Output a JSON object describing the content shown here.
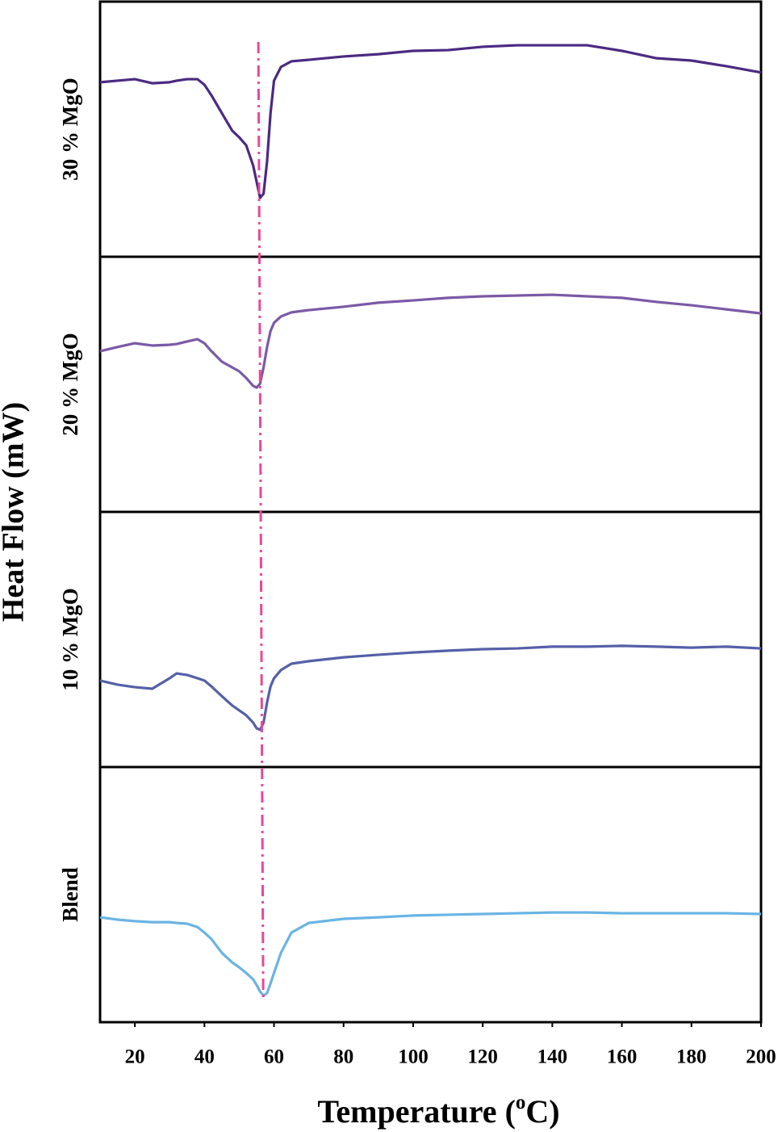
{
  "ylabel": "Heat Flow (mW)",
  "reference_line": {
    "x": [
      55.5,
      56.9
    ],
    "color": "#e8489a"
  },
  "chart_data": [
    {
      "type": "line",
      "ylabel": "30 % MgO",
      "xlim": [
        10,
        200
      ],
      "ylim": [
        0,
        100
      ],
      "x": [
        10,
        15,
        20,
        25,
        30,
        32,
        35,
        38,
        40,
        42,
        45,
        48,
        50,
        52,
        54,
        55,
        56,
        57,
        58,
        59,
        60,
        62,
        65,
        70,
        80,
        90,
        100,
        110,
        120,
        130,
        140,
        150,
        160,
        170,
        180,
        190,
        200
      ],
      "series": [
        {
          "color": "#4b2a82",
          "values": [
            68.4,
            69.0,
            69.6,
            68.0,
            68.4,
            69.0,
            69.6,
            69.6,
            67.4,
            63.3,
            56.3,
            49.4,
            46.8,
            43.7,
            35.8,
            29.4,
            23.1,
            24.7,
            37.3,
            56.3,
            69.0,
            74.4,
            76.6,
            77.2,
            78.5,
            79.4,
            80.7,
            81.0,
            82.3,
            82.9,
            82.9,
            82.9,
            80.7,
            77.8,
            76.9,
            74.7,
            72.2
          ]
        }
      ]
    },
    {
      "type": "line",
      "ylabel": "20 % MgO",
      "xlim": [
        10,
        200
      ],
      "ylim": [
        0,
        100
      ],
      "x": [
        10,
        15,
        20,
        25,
        30,
        32,
        35,
        38,
        40,
        42,
        45,
        48,
        50,
        52,
        54,
        55,
        56,
        57,
        58,
        59,
        60,
        62,
        65,
        70,
        80,
        90,
        100,
        110,
        120,
        130,
        140,
        150,
        160,
        170,
        180,
        190,
        200
      ],
      "series": [
        {
          "color": "#7b5aa6",
          "values": [
            63.0,
            64.6,
            66.1,
            65.2,
            65.5,
            65.8,
            66.8,
            67.7,
            66.1,
            63.0,
            58.9,
            56.6,
            55.1,
            52.5,
            49.4,
            48.7,
            50.3,
            56.6,
            64.6,
            70.9,
            74.1,
            76.6,
            78.2,
            79.1,
            80.4,
            82.0,
            82.9,
            83.9,
            84.5,
            84.8,
            85.1,
            84.5,
            83.9,
            82.3,
            81.0,
            79.4,
            77.8
          ]
        }
      ]
    },
    {
      "type": "line",
      "ylabel": "10 % MgO",
      "xlim": [
        10,
        200
      ],
      "ylim": [
        0,
        100
      ],
      "x": [
        10,
        15,
        20,
        25,
        30,
        32,
        35,
        38,
        40,
        42,
        45,
        48,
        50,
        52,
        54,
        55,
        56,
        57,
        58,
        59,
        60,
        62,
        65,
        70,
        80,
        90,
        100,
        110,
        120,
        130,
        140,
        150,
        160,
        170,
        180,
        190,
        200
      ],
      "series": [
        {
          "color": "#5560a8",
          "values": [
            33.9,
            32.3,
            31.3,
            30.7,
            34.8,
            36.7,
            36.1,
            34.8,
            33.9,
            31.6,
            27.8,
            24.1,
            22.2,
            20.3,
            17.4,
            15.2,
            14.6,
            17.4,
            25.3,
            31.6,
            34.8,
            38.0,
            40.5,
            41.5,
            43.0,
            44.0,
            44.9,
            45.6,
            46.2,
            46.5,
            47.2,
            47.2,
            47.5,
            47.2,
            46.8,
            47.2,
            46.5
          ]
        }
      ]
    },
    {
      "type": "line",
      "ylabel": "Blend",
      "xlim": [
        10,
        200
      ],
      "ylim": [
        0,
        100
      ],
      "x": [
        10,
        15,
        20,
        25,
        30,
        32,
        35,
        38,
        40,
        42,
        45,
        48,
        50,
        52,
        54,
        55,
        56,
        57,
        58,
        59,
        60,
        62,
        65,
        70,
        80,
        90,
        100,
        110,
        120,
        130,
        140,
        150,
        160,
        170,
        180,
        190,
        200
      ],
      "series": [
        {
          "color": "#6ab4e4",
          "values": [
            41.1,
            40.2,
            39.6,
            39.2,
            39.2,
            38.9,
            38.6,
            37.3,
            35.1,
            32.6,
            27.2,
            23.4,
            21.5,
            19.3,
            16.8,
            14.6,
            12.0,
            10.4,
            11.4,
            15.2,
            19.3,
            27.2,
            35.1,
            38.9,
            40.5,
            41.1,
            41.8,
            42.1,
            42.4,
            42.7,
            43.0,
            43.0,
            42.7,
            42.7,
            42.7,
            42.7,
            42.4
          ]
        }
      ],
      "xticks": [
        20,
        40,
        60,
        80,
        100,
        120,
        140,
        160,
        180,
        200
      ],
      "xlabel": [
        "Temperature (",
        "o",
        "C)"
      ]
    }
  ]
}
